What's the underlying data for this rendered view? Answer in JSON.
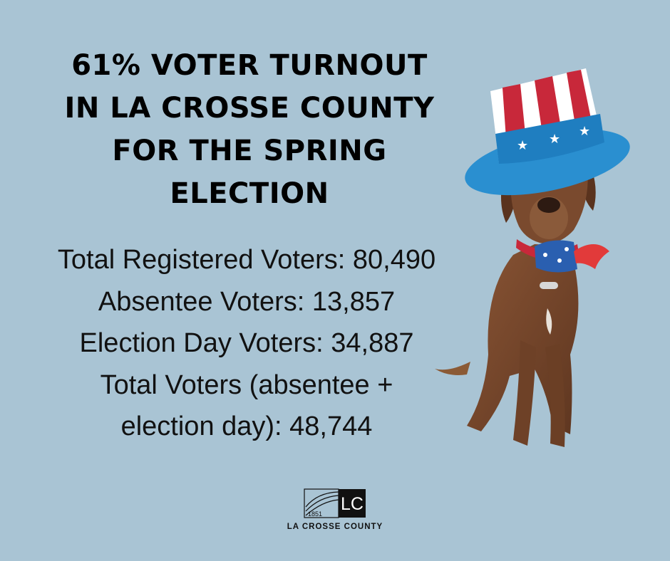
{
  "headline": {
    "line1": "61% VOTER TURNOUT",
    "line2": "IN LA CROSSE COUNTY",
    "line3": "FOR THE SPRING",
    "line4": "ELECTION"
  },
  "stats": {
    "registered": "Total Registered Voters: 80,490",
    "absentee": "Absentee Voters: 13,857",
    "election_day": "Election Day Voters: 34,887",
    "total_line1": "Total Voters (absentee +",
    "total_line2": "election day):  48,744"
  },
  "logo": {
    "year": "1851",
    "initials": "LC",
    "name": "LA CROSSE COUNTY"
  },
  "colors": {
    "background": "#a9c4d4",
    "text": "#000000",
    "dog_fur": "#7a4a2e",
    "hat_red": "#c8283a",
    "hat_blue": "#2a8fd0"
  }
}
